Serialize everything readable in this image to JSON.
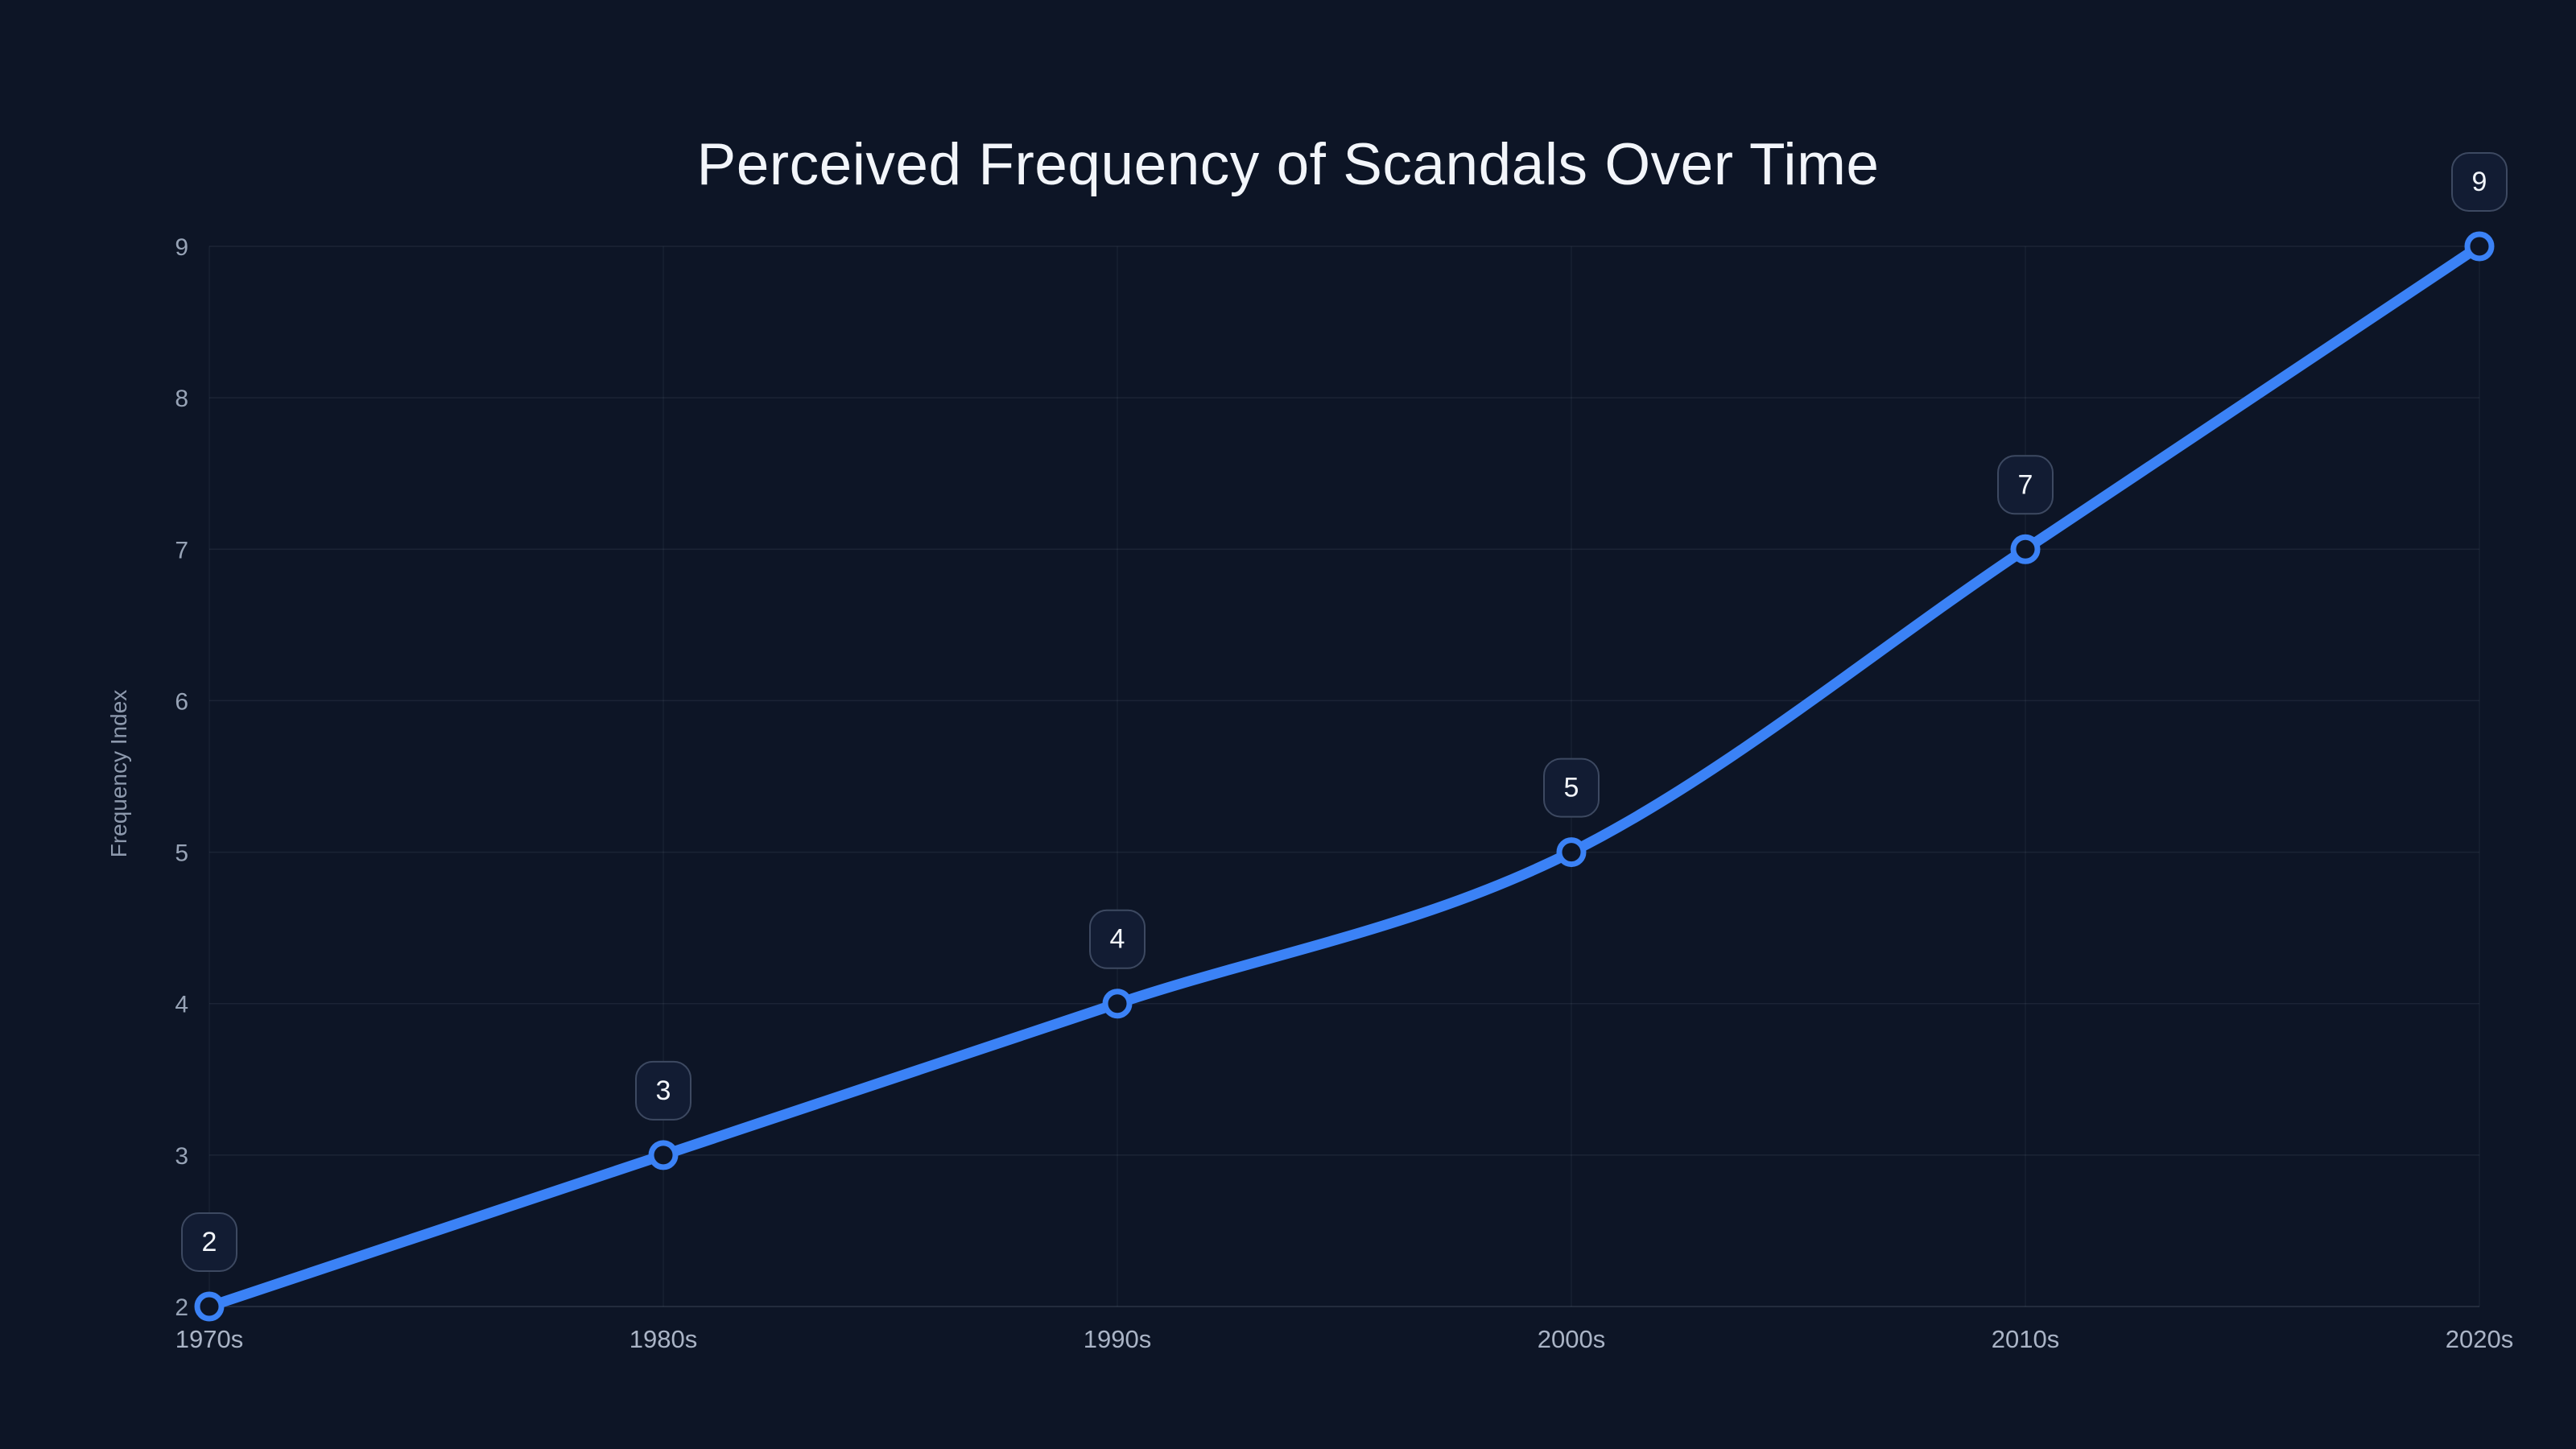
{
  "title": "Perceived Frequency of Scandals Over Time",
  "chart_data": {
    "type": "line",
    "title": "Perceived Frequency of Scandals Over Time",
    "xlabel": "",
    "ylabel": "Frequency Index",
    "categories": [
      "1970s",
      "1980s",
      "1990s",
      "2000s",
      "2010s",
      "2020s"
    ],
    "series": [
      {
        "name": "Frequency Index",
        "values": [
          2,
          3,
          4,
          5,
          7,
          9
        ]
      }
    ],
    "point_labels": [
      "2",
      "3",
      "4",
      "5",
      "7",
      "9"
    ],
    "yticks": [
      2,
      3,
      4,
      5,
      6,
      7,
      8,
      9
    ],
    "ylim": [
      2,
      9
    ],
    "grid": true,
    "legend_visible": false,
    "curve": "smooth"
  },
  "colors": {
    "background": "#0d1526",
    "line": "#3b82f6",
    "marker_ring": "#3b82f6",
    "marker_fill": "#0d1526",
    "grid_horizontal": "#94a3b8",
    "grid_vertical": "#94a3b8",
    "axis_line": "#94a3b8",
    "badge_fill": "#121c33",
    "badge_border": "#3d4961",
    "badge_text": "#f2f5fa",
    "y_tick_text": "#97a3b6",
    "x_tick_text": "#aab4c6",
    "title_text": "#f2f5fa",
    "y_axis_title_text": "#8d99ad"
  }
}
